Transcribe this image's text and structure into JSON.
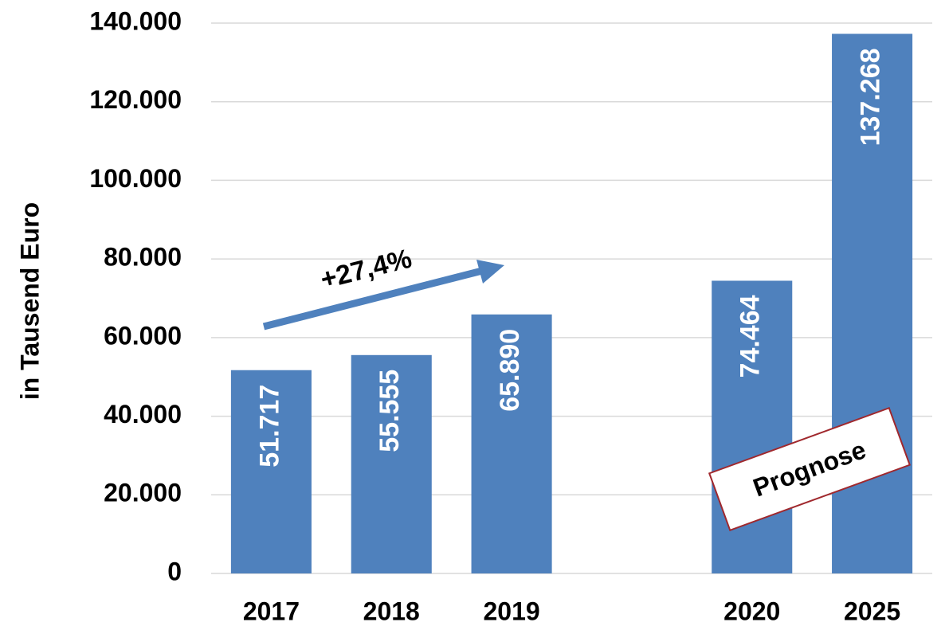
{
  "chart_data": {
    "type": "bar",
    "y_label": "in Tausend Euro",
    "categories": [
      "2017",
      "2018",
      "2019",
      null,
      "2020",
      "2025"
    ],
    "values": [
      51717,
      55555,
      65890,
      null,
      74464,
      137268
    ],
    "value_labels": [
      "51.717",
      "55.555",
      "65.890",
      null,
      "74.464",
      "137.268"
    ],
    "color": "#4f81bd",
    "ylim": [
      0,
      140000
    ],
    "yticks": [
      0,
      {
        "value": 20000,
        "label": "20.000"
      },
      {
        "value": 40000,
        "label": "40.000"
      },
      {
        "value": 60000,
        "label": "60.000"
      },
      {
        "value": 80000,
        "label": "80.000"
      },
      {
        "value": 100000,
        "label": "100.000"
      },
      {
        "value": 120000,
        "label": "120.000"
      },
      {
        "value": 140000,
        "label": "140.000"
      }
    ],
    "grid": true,
    "annotations": [
      "+27,4%",
      "Prognose"
    ]
  }
}
